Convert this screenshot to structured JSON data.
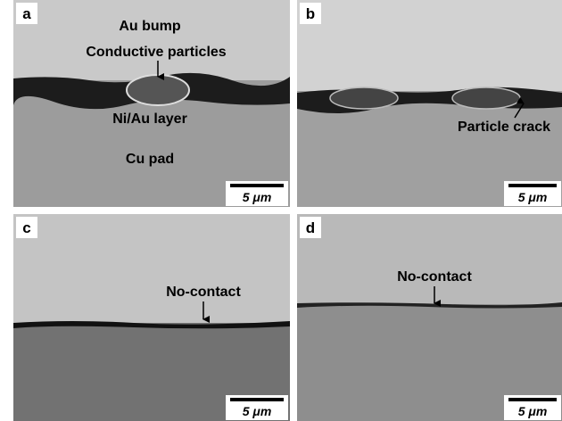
{
  "panels": [
    {
      "letter": "a",
      "labels": [
        "Au bump",
        "Conductive particles",
        "Ni/Au layer",
        "Cu pad"
      ],
      "scale": "5 μm"
    },
    {
      "letter": "b",
      "labels": [
        "Particle crack"
      ],
      "scale": "5 μm"
    },
    {
      "letter": "c",
      "labels": [
        "No-contact"
      ],
      "scale": "5 μm"
    },
    {
      "letter": "d",
      "labels": [
        "No-contact"
      ],
      "scale": "5 μm"
    }
  ]
}
